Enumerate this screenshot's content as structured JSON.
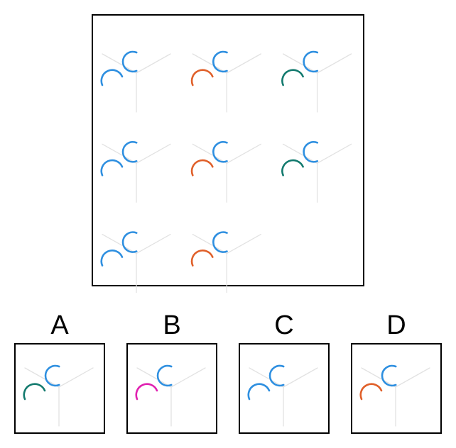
{
  "colors": {
    "blue": "#2e8fe0",
    "orange": "#e0602a",
    "teal": "#137a6e",
    "magenta": "#e020b0",
    "guide": "#e2e2e2",
    "border": "#000000"
  },
  "grid": {
    "cells": [
      {
        "arc": "blue"
      },
      {
        "arc": "orange"
      },
      {
        "arc": "teal"
      },
      {
        "arc": "blue"
      },
      {
        "arc": "orange"
      },
      {
        "arc": "teal"
      },
      {
        "arc": "blue"
      },
      {
        "arc": "orange"
      },
      null
    ]
  },
  "options": [
    {
      "label": "A",
      "arc": "teal"
    },
    {
      "label": "B",
      "arc": "magenta"
    },
    {
      "label": "C",
      "arc": "blue"
    },
    {
      "label": "D",
      "arc": "orange"
    }
  ]
}
